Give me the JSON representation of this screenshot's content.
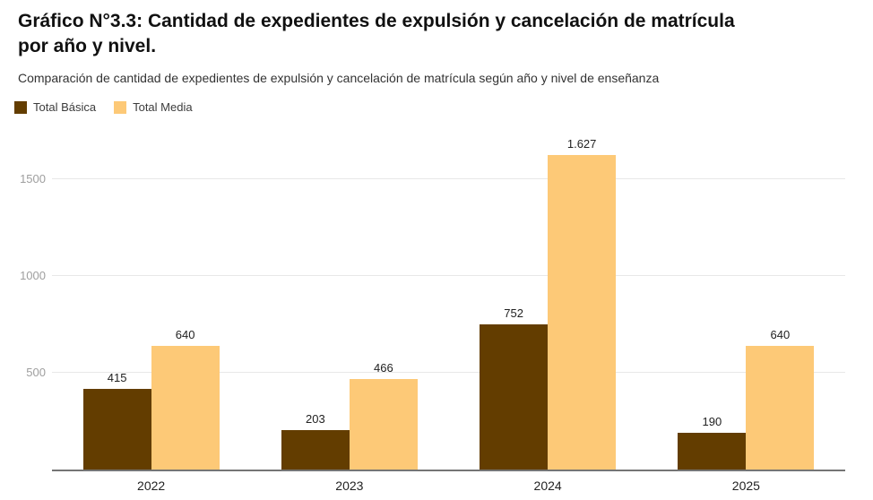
{
  "header": {
    "title_line1": "Gráfico N°3.3: Cantidad de expedientes de expulsión y cancelación de matrícula",
    "title_line2": "por año y nivel.",
    "subtitle": "Comparación de cantidad de expedientes de expulsión y cancelación de matrícula según año y nivel de enseñanza"
  },
  "chart_data": {
    "type": "bar",
    "title": "Gráfico N°3.3: Cantidad de expedientes de expulsión y cancelación de matrícula por año y nivel.",
    "subtitle": "Comparación de cantidad de expedientes de expulsión y cancelación de matrícula según año y nivel de enseñanza",
    "categories": [
      "2022",
      "2023",
      "2024",
      "2025"
    ],
    "series": [
      {
        "name": "Total Básica",
        "color": "#633d00",
        "values": [
          415,
          203,
          752,
          190
        ],
        "value_labels": [
          "415",
          "203",
          "752",
          "190"
        ]
      },
      {
        "name": "Total Media",
        "color": "#fdc977",
        "values": [
          640,
          466,
          1627,
          640
        ],
        "value_labels": [
          "640",
          "466",
          "1.627",
          "640"
        ]
      }
    ],
    "ylim": [
      0,
      1685
    ],
    "yticks": [
      {
        "value": 500,
        "label": "500"
      },
      {
        "value": 1000,
        "label": "1000"
      },
      {
        "value": 1500,
        "label": "1500"
      }
    ],
    "grid": true,
    "legend_position": "top-left",
    "colors": {
      "axis_line": "#757575",
      "gridline": "#e8e8e8",
      "ytick_label": "#9e9e9e",
      "xtick_label": "#222222",
      "value_label": "#212121",
      "background": "#ffffff"
    }
  }
}
